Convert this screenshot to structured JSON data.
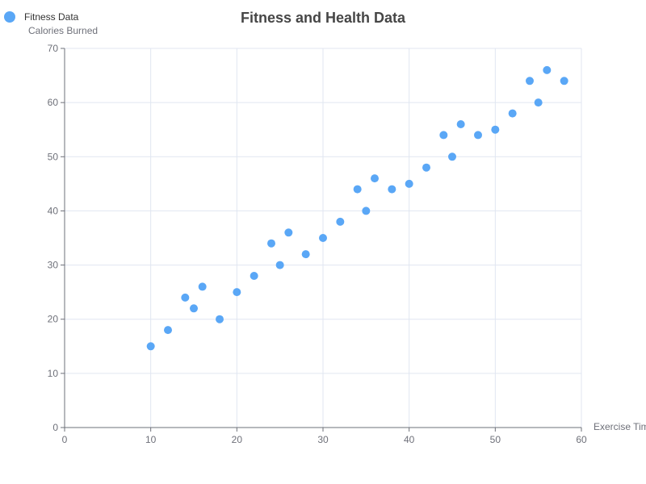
{
  "chart_data": {
    "type": "scatter",
    "title": "Fitness and Health Data",
    "xlabel": "Exercise Time",
    "ylabel": "Calories Burned",
    "xlim": [
      0,
      60
    ],
    "ylim": [
      0,
      70
    ],
    "xticks": [
      "0",
      "10",
      "20",
      "30",
      "40",
      "50",
      "60"
    ],
    "yticks": [
      "0",
      "10",
      "20",
      "30",
      "40",
      "50",
      "60",
      "70"
    ],
    "grid": true,
    "legend_position": "top-left",
    "series": [
      {
        "name": "Fitness Data",
        "color": "#5aa7f6",
        "points": [
          [
            10,
            15
          ],
          [
            12,
            18
          ],
          [
            14,
            24
          ],
          [
            15,
            22
          ],
          [
            16,
            26
          ],
          [
            18,
            20
          ],
          [
            20,
            25
          ],
          [
            22,
            28
          ],
          [
            24,
            34
          ],
          [
            25,
            30
          ],
          [
            26,
            36
          ],
          [
            28,
            32
          ],
          [
            30,
            35
          ],
          [
            32,
            38
          ],
          [
            34,
            44
          ],
          [
            35,
            40
          ],
          [
            36,
            46
          ],
          [
            38,
            44
          ],
          [
            40,
            45
          ],
          [
            42,
            48
          ],
          [
            44,
            54
          ],
          [
            45,
            50
          ],
          [
            46,
            56
          ],
          [
            48,
            54
          ],
          [
            50,
            55
          ],
          [
            52,
            58
          ],
          [
            54,
            64
          ],
          [
            55,
            60
          ],
          [
            56,
            66
          ],
          [
            58,
            64
          ]
        ]
      }
    ]
  }
}
